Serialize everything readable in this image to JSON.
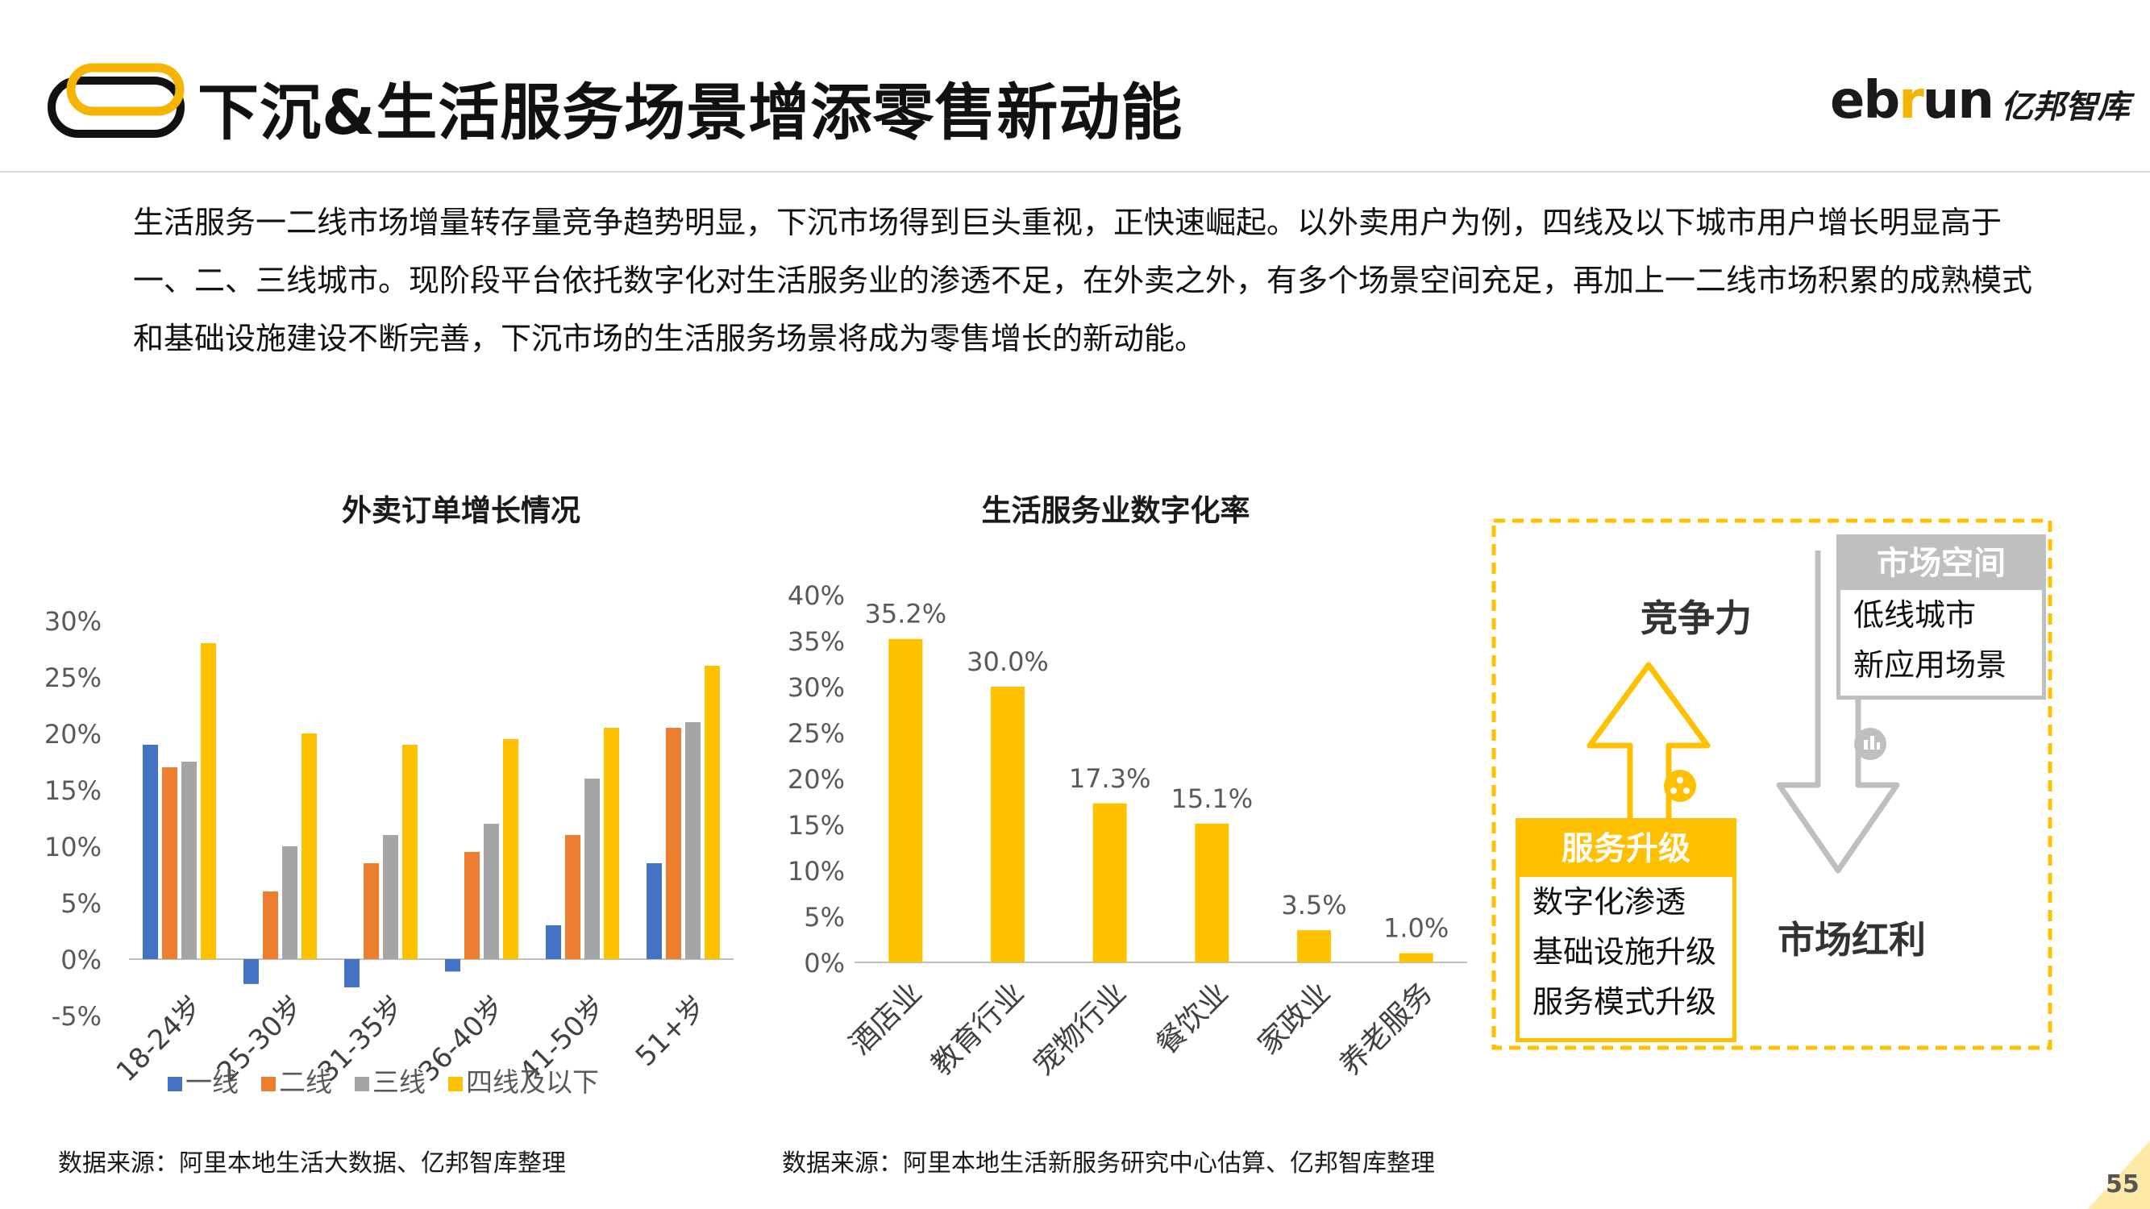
{
  "header": {
    "title": "下沉&生活服务场景增添零售新动能",
    "brand_en_pre": "eb",
    "brand_en_r": "r",
    "brand_en_post": "un",
    "brand_cn": "亿邦智库"
  },
  "intro": "生活服务一二线市场增量转存量竞争趋势明显，下沉市场得到巨头重视，正快速崛起。以外卖用户为例，四线及以下城市用户增长明显高于一、二、三线城市。现阶段平台依托数字化对生活服务业的渗透不足，在外卖之外，有多个场景空间充足，再加上一二线市场积累的成熟模式和基础设施建设不断完善，下沉市场的生活服务场景将成为零售增长的新动能。",
  "colors": {
    "accent": "#FFC000",
    "tier1": "#4472C4",
    "tier2": "#ED7D31",
    "tier3": "#A5A5A5",
    "tier4": "#FFC000",
    "grey_box": "#BFBFBF"
  },
  "chart_data": [
    {
      "type": "bar",
      "title": "外卖订单增长情况",
      "categories": [
        "18-24岁",
        "25-30岁",
        "31-35岁",
        "36-40岁",
        "41-50岁",
        "51+岁"
      ],
      "series": [
        {
          "name": "一线",
          "values": [
            19,
            -2.2,
            -2.5,
            -1.1,
            3,
            8.5
          ]
        },
        {
          "name": "二线",
          "values": [
            17,
            6,
            8.5,
            9.5,
            11,
            20.5
          ]
        },
        {
          "name": "三线",
          "values": [
            17.5,
            10,
            11,
            12,
            16,
            21
          ]
        },
        {
          "name": "四线及以下",
          "values": [
            28,
            20,
            19,
            19.5,
            20.5,
            26
          ]
        }
      ],
      "ylim": [
        -5,
        30
      ],
      "yticks": [
        "-5%",
        "0%",
        "5%",
        "10%",
        "15%",
        "20%",
        "25%",
        "30%"
      ],
      "source": "数据来源：阿里本地生活大数据、亿邦智库整理"
    },
    {
      "type": "bar",
      "title": "生活服务业数字化率",
      "categories": [
        "酒店业",
        "教育行业",
        "宠物行业",
        "餐饮业",
        "家政业",
        "养老服务"
      ],
      "values": [
        35.2,
        30.0,
        17.3,
        15.1,
        3.5,
        1.0
      ],
      "data_labels": [
        "35.2%",
        "30.0%",
        "17.3%",
        "15.1%",
        "3.5%",
        "1.0%"
      ],
      "ylim": [
        0,
        40
      ],
      "yticks": [
        "0%",
        "5%",
        "10%",
        "15%",
        "20%",
        "25%",
        "30%",
        "35%",
        "40%"
      ],
      "source": "数据来源：阿里本地生活新服务研究中心估算、亿邦智库整理"
    }
  ],
  "diagram": {
    "competitiveness": "竞争力",
    "market_dividend": "市场红利",
    "market_space": {
      "title": "市场空间",
      "items": [
        "低线城市",
        "新应用场景"
      ]
    },
    "service_upgrade": {
      "title": "服务升级",
      "items": [
        "数字化渗透",
        "基础设施升级",
        "服务模式升级"
      ]
    }
  },
  "page_number": "55"
}
